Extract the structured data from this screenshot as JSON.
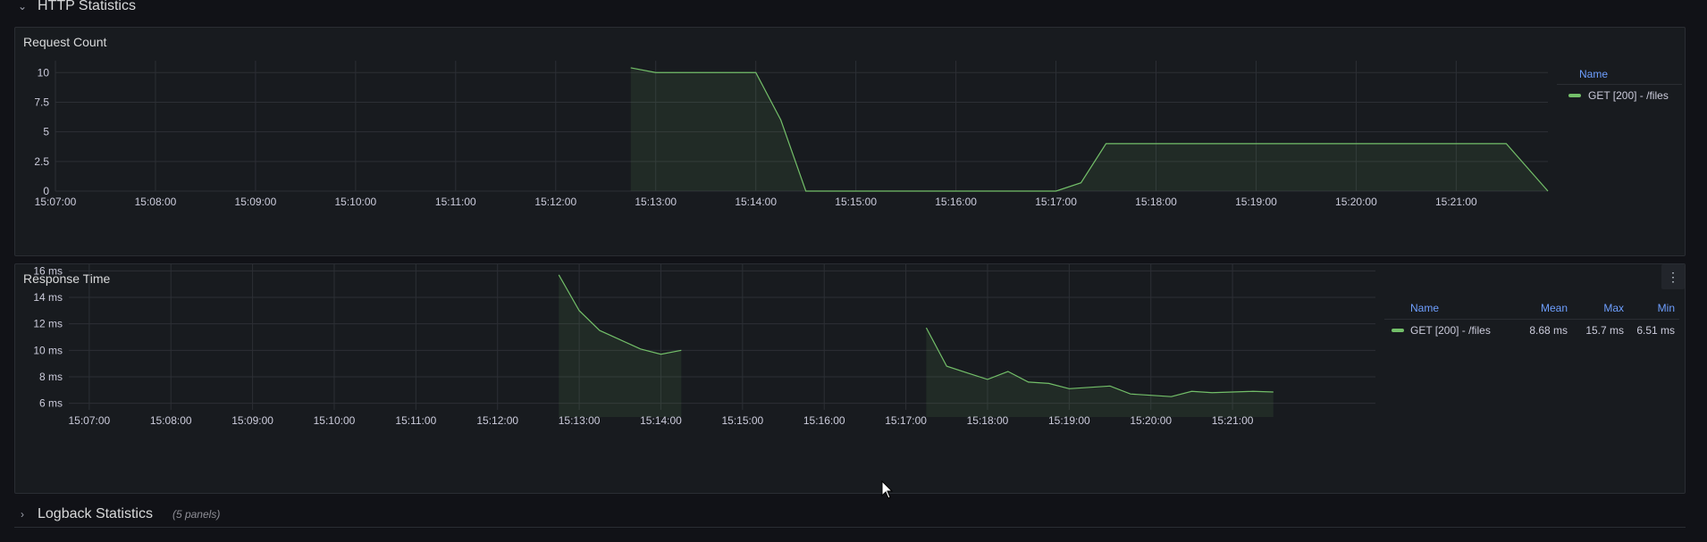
{
  "rows": {
    "http": {
      "title": "HTTP Statistics",
      "chevron": "⌄"
    },
    "logback": {
      "title": "Logback Statistics",
      "chevron": "›",
      "count": "(5 panels)"
    }
  },
  "panels": {
    "request_count": {
      "title": "Request Count",
      "legend": {
        "header_name": "Name",
        "series_name": "GET [200] - /files"
      }
    },
    "response_time": {
      "title": "Response Time",
      "menu_icon": "more-vertical-icon",
      "legend": {
        "headers": {
          "name": "Name",
          "mean": "Mean",
          "max": "Max",
          "min": "Min"
        },
        "series_name": "GET [200] - /files",
        "mean": "8.68 ms",
        "max": "15.7 ms",
        "min": "6.51 ms"
      }
    }
  },
  "colors": {
    "series": "#73bf69",
    "accent": "#6e9fff",
    "background": "#111217",
    "panel": "#181b1f"
  },
  "chart_data": [
    {
      "type": "area",
      "title": "Request Count",
      "x_ticks": [
        "15:07:00",
        "15:08:00",
        "15:09:00",
        "15:10:00",
        "15:11:00",
        "15:12:00",
        "15:13:00",
        "15:14:00",
        "15:15:00",
        "15:16:00",
        "15:17:00",
        "15:18:00",
        "15:19:00",
        "15:20:00",
        "15:21:00"
      ],
      "y_ticks": [
        "0",
        "2.5",
        "5",
        "7.5",
        "10"
      ],
      "ylim": [
        0,
        11
      ],
      "xlim": [
        "15:07:00",
        "15:21:55"
      ],
      "grid": true,
      "legend_position": "right",
      "series": [
        {
          "name": "GET [200] - /files",
          "points": [
            [
              "15:12:45",
              10.4
            ],
            [
              "15:13:00",
              10
            ],
            [
              "15:14:00",
              10
            ],
            [
              "15:14:15",
              6
            ],
            [
              "15:14:30",
              0
            ],
            [
              "15:17:00",
              0
            ],
            [
              "15:17:15",
              0.7
            ],
            [
              "15:17:30",
              4
            ],
            [
              "15:21:30",
              4
            ],
            [
              "15:21:55",
              0
            ]
          ]
        }
      ]
    },
    {
      "type": "area",
      "title": "Response Time",
      "x_ticks": [
        "15:07:00",
        "15:08:00",
        "15:09:00",
        "15:10:00",
        "15:11:00",
        "15:12:00",
        "15:13:00",
        "15:14:00",
        "15:15:00",
        "15:16:00",
        "15:17:00",
        "15:18:00",
        "15:19:00",
        "15:20:00",
        "15:21:00"
      ],
      "y_ticks": [
        "6 ms",
        "8 ms",
        "10 ms",
        "12 ms",
        "14 ms",
        "16 ms"
      ],
      "ylim": [
        5.5,
        16.5
      ],
      "xlim": [
        "15:06:45",
        "15:22:45"
      ],
      "grid": true,
      "legend_position": "right",
      "series": [
        {
          "name": "GET [200] - /files",
          "segments": [
            [
              [
                "15:12:45",
                15.7
              ],
              [
                "15:13:00",
                13
              ],
              [
                "15:13:15",
                11.5
              ],
              [
                "15:13:30",
                10.8
              ],
              [
                "15:13:45",
                10.1
              ],
              [
                "15:14:00",
                9.7
              ],
              [
                "15:14:15",
                10
              ]
            ],
            [
              [
                "15:17:15",
                11.7
              ],
              [
                "15:17:30",
                8.8
              ],
              [
                "15:17:45",
                8.3
              ],
              [
                "15:18:00",
                7.8
              ],
              [
                "15:18:15",
                8.4
              ],
              [
                "15:18:30",
                7.6
              ],
              [
                "15:18:45",
                7.5
              ],
              [
                "15:19:00",
                7.1
              ],
              [
                "15:19:30",
                7.3
              ],
              [
                "15:19:45",
                6.7
              ],
              [
                "15:20:00",
                6.6
              ],
              [
                "15:20:15",
                6.5
              ],
              [
                "15:20:30",
                6.9
              ],
              [
                "15:20:45",
                6.8
              ],
              [
                "15:21:15",
                6.9
              ],
              [
                "15:21:30",
                6.85
              ]
            ]
          ]
        }
      ]
    }
  ]
}
